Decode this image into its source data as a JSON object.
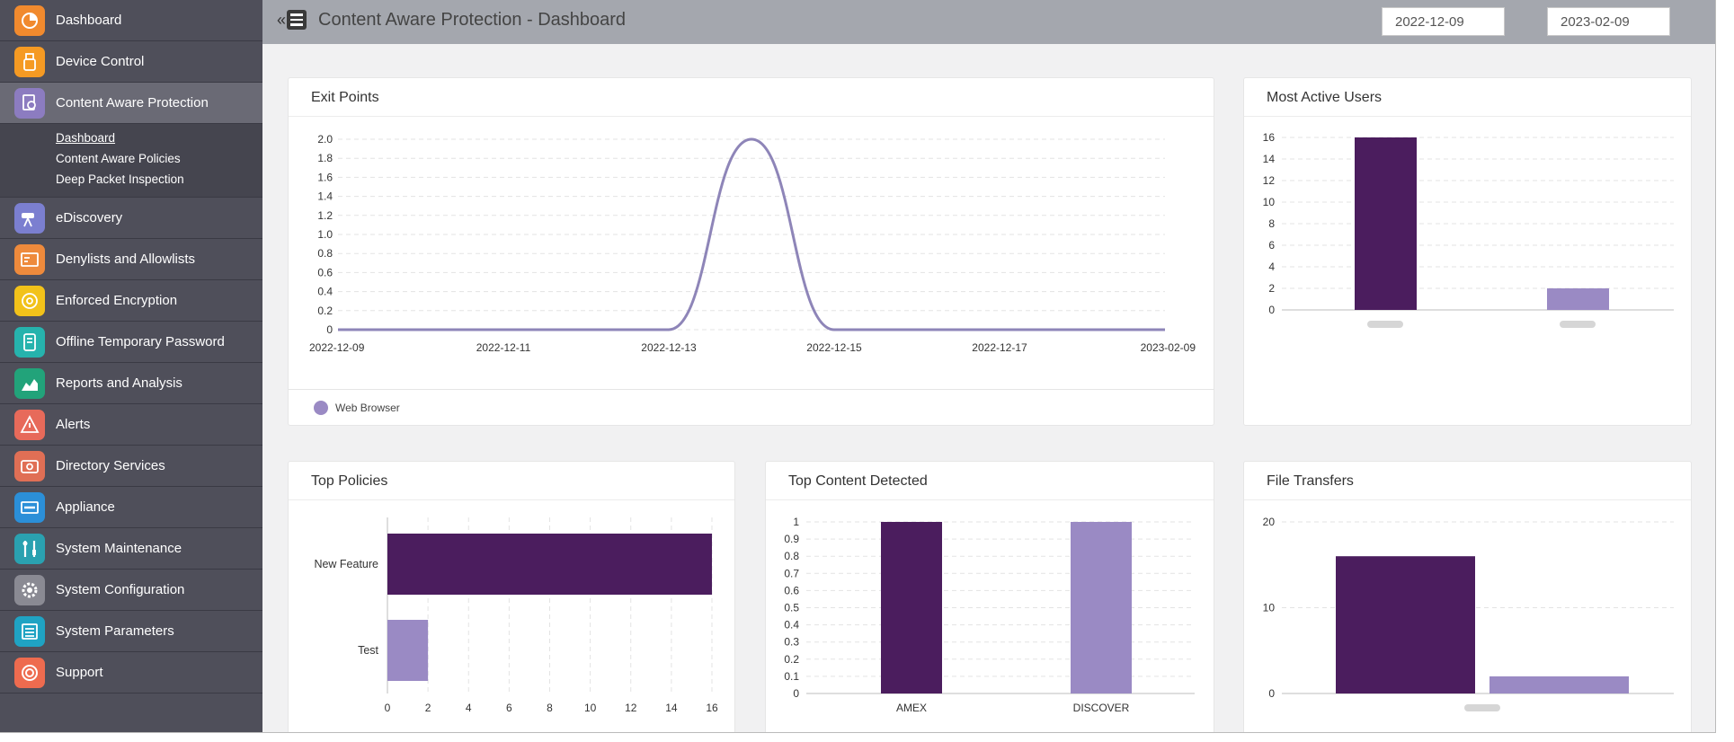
{
  "sidebar": {
    "items": [
      {
        "label": "Dashboard",
        "color": "#f18a2e",
        "icon": "dashboard-icon"
      },
      {
        "label": "Device Control",
        "color": "#f59a23",
        "icon": "usb-icon"
      },
      {
        "label": "Content Aware Protection",
        "color": "#8c7cc0",
        "icon": "document-search-icon"
      },
      {
        "label": "eDiscovery",
        "color": "#7b7fd0",
        "icon": "telescope-icon"
      },
      {
        "label": "Denylists and Allowlists",
        "color": "#ee8a3c",
        "icon": "list-icon"
      },
      {
        "label": "Enforced Encryption",
        "color": "#f2c21a",
        "icon": "disc-icon"
      },
      {
        "label": "Offline Temporary Password",
        "color": "#26b3ad",
        "icon": "password-icon"
      },
      {
        "label": "Reports and Analysis",
        "color": "#22a37a",
        "icon": "area-chart-icon"
      },
      {
        "label": "Alerts",
        "color": "#e76a5a",
        "icon": "warning-icon"
      },
      {
        "label": "Directory Services",
        "color": "#e06f55",
        "icon": "directory-icon"
      },
      {
        "label": "Appliance",
        "color": "#2b8fd8",
        "icon": "appliance-icon"
      },
      {
        "label": "System Maintenance",
        "color": "#2aa1b0",
        "icon": "tools-icon"
      },
      {
        "label": "System Configuration",
        "color": "#8a8a93",
        "icon": "gear-icon"
      },
      {
        "label": "System Parameters",
        "color": "#1fa3c3",
        "icon": "parameters-icon"
      },
      {
        "label": "Support",
        "color": "#ee6b4f",
        "icon": "lifebuoy-icon"
      }
    ],
    "subitems": [
      {
        "label": "Dashboard",
        "active": true
      },
      {
        "label": "Content Aware Policies",
        "active": false
      },
      {
        "label": "Deep Packet Inspection",
        "active": false
      }
    ]
  },
  "header": {
    "collapse_glyph": "«",
    "title": "Content Aware Protection - Dashboard",
    "date_from": "2022-12-09",
    "date_to": "2023-02-09"
  },
  "colors": {
    "dark_purple": "#4b1d5e",
    "light_purple": "#9a8ac4",
    "line": "#8e85b8"
  },
  "cards": {
    "exit_points": {
      "title": "Exit Points",
      "legend": "Web Browser",
      "chart_data": {
        "type": "line",
        "x": [
          "2022-12-09",
          "2022-12-11",
          "2022-12-13",
          "2022-12-15",
          "2022-12-17",
          "2023-02-09"
        ],
        "series": [
          {
            "name": "Web Browser",
            "points": [
              [
                0,
                0
              ],
              [
                2.0,
                0
              ],
              [
                2.5,
                2
              ],
              [
                3.0,
                0
              ],
              [
                5.0,
                0
              ]
            ]
          }
        ],
        "ylim": [
          0,
          2
        ],
        "yticks": [
          "0",
          "0.2",
          "0.4",
          "0.6",
          "0.8",
          "1.0",
          "1.2",
          "1.4",
          "1.6",
          "1.8",
          "2.0"
        ]
      }
    },
    "most_active_users": {
      "title": "Most Active Users",
      "chart_data": {
        "type": "bar",
        "categories": [
          "",
          ""
        ],
        "values": [
          16,
          2
        ],
        "ylim": [
          0,
          16
        ],
        "yticks": [
          "0",
          "2",
          "4",
          "6",
          "8",
          "10",
          "12",
          "14",
          "16"
        ]
      }
    },
    "top_policies": {
      "title": "Top Policies",
      "chart_data": {
        "type": "bar",
        "orientation": "horizontal",
        "categories": [
          "New Feature",
          "Test"
        ],
        "values": [
          16,
          2
        ],
        "xlim": [
          0,
          16
        ],
        "xticks": [
          "0",
          "2",
          "4",
          "6",
          "8",
          "10",
          "12",
          "14",
          "16"
        ]
      }
    },
    "top_content": {
      "title": "Top Content Detected",
      "chart_data": {
        "type": "bar",
        "categories": [
          "AMEX",
          "DISCOVER"
        ],
        "values": [
          1,
          1
        ],
        "ylim": [
          0,
          1
        ],
        "yticks": [
          "0",
          "0.1",
          "0.2",
          "0.3",
          "0.4",
          "0.5",
          "0.6",
          "0.7",
          "0.8",
          "0.9",
          "1"
        ]
      }
    },
    "file_transfers": {
      "title": "File Transfers",
      "chart_data": {
        "type": "bar",
        "categories": [
          ""
        ],
        "series": [
          {
            "values": [
              16
            ]
          },
          {
            "values": [
              2
            ]
          }
        ],
        "ylim": [
          0,
          20
        ],
        "yticks": [
          "0",
          "10",
          "20"
        ]
      }
    }
  }
}
